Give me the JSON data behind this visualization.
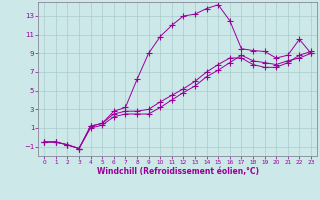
{
  "xlabel": "Windchill (Refroidissement éolien,°C)",
  "line_color": "#990099",
  "bg_color": "#cce8e8",
  "grid_color": "#aacccc",
  "xlim": [
    -0.5,
    23.5
  ],
  "ylim": [
    -2.0,
    14.5
  ],
  "xticks": [
    0,
    1,
    2,
    3,
    4,
    5,
    6,
    7,
    8,
    9,
    10,
    11,
    12,
    13,
    14,
    15,
    16,
    17,
    18,
    19,
    20,
    21,
    22,
    23
  ],
  "yticks": [
    -1,
    1,
    3,
    5,
    7,
    9,
    11,
    13
  ],
  "line1_x": [
    0,
    1,
    2,
    3,
    4,
    5,
    6,
    7,
    8,
    9,
    10,
    11,
    12,
    13,
    14,
    15,
    16,
    17,
    18,
    19,
    20,
    21,
    22,
    23
  ],
  "line1_y": [
    -0.5,
    -0.5,
    -0.8,
    -1.2,
    1.2,
    1.5,
    2.8,
    3.2,
    6.2,
    9.0,
    10.8,
    12.0,
    13.0,
    13.2,
    13.8,
    14.2,
    12.5,
    9.5,
    9.3,
    9.2,
    8.5,
    8.8,
    10.5,
    9.0
  ],
  "line2_x": [
    0,
    1,
    2,
    3,
    4,
    5,
    6,
    7,
    8,
    9,
    10,
    11,
    12,
    13,
    14,
    15,
    16,
    17,
    18,
    19,
    20,
    21,
    22,
    23
  ],
  "line2_y": [
    -0.5,
    -0.5,
    -0.8,
    -1.2,
    1.2,
    1.5,
    2.5,
    2.8,
    2.8,
    3.0,
    3.8,
    4.5,
    5.2,
    6.0,
    7.0,
    7.8,
    8.5,
    8.5,
    7.8,
    7.5,
    7.5,
    8.0,
    8.8,
    9.2
  ],
  "line3_x": [
    0,
    1,
    2,
    3,
    4,
    5,
    6,
    7,
    8,
    9,
    10,
    11,
    12,
    13,
    14,
    15,
    16,
    17,
    18,
    19,
    20,
    21,
    22,
    23
  ],
  "line3_y": [
    -0.5,
    -0.5,
    -0.8,
    -1.2,
    1.0,
    1.3,
    2.2,
    2.5,
    2.5,
    2.5,
    3.2,
    4.0,
    4.8,
    5.5,
    6.5,
    7.2,
    8.0,
    8.8,
    8.2,
    8.0,
    7.8,
    8.2,
    8.5,
    9.0
  ]
}
